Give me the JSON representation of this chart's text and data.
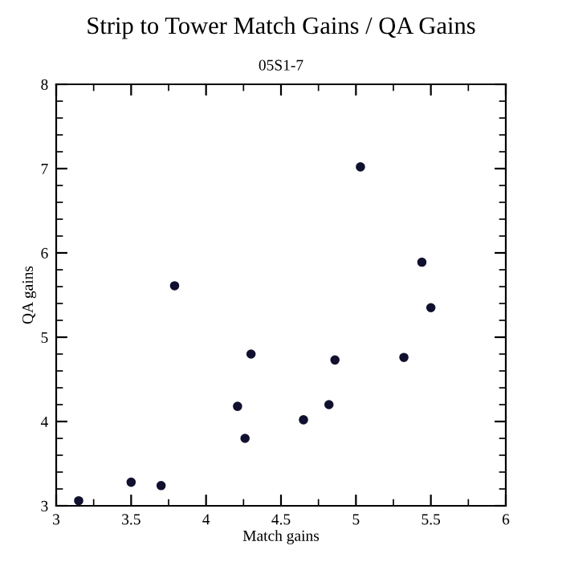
{
  "chart_data": {
    "type": "scatter",
    "title": "Strip to Tower Match Gains / QA Gains",
    "subtitle": "05S1-7",
    "xlabel": "Match gains",
    "ylabel": "QA gains",
    "x": [
      3.15,
      3.5,
      3.7,
      3.79,
      4.21,
      4.26,
      4.3,
      4.65,
      4.82,
      4.86,
      5.03,
      5.32,
      5.44,
      5.5
    ],
    "values": [
      3.06,
      3.28,
      3.24,
      5.61,
      4.18,
      3.8,
      4.8,
      4.02,
      4.2,
      4.73,
      7.02,
      4.76,
      5.89,
      5.35
    ],
    "color": "#101030",
    "marker": "circle",
    "grid": false,
    "legend": false,
    "xlim": [
      3,
      6
    ],
    "xticks": [
      3,
      3.5,
      4,
      4.5,
      5,
      5.5,
      6
    ],
    "ylim": [
      3,
      8
    ],
    "yticks": [
      3,
      4,
      5,
      6,
      7,
      8
    ]
  }
}
